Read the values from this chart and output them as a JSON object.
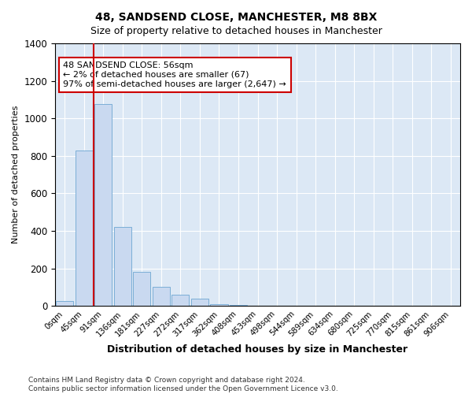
{
  "title1": "48, SANDSEND CLOSE, MANCHESTER, M8 8BX",
  "title2": "Size of property relative to detached houses in Manchester",
  "xlabel": "Distribution of detached houses by size in Manchester",
  "ylabel": "Number of detached properties",
  "bar_labels": [
    "0sqm",
    "45sqm",
    "91sqm",
    "136sqm",
    "181sqm",
    "227sqm",
    "272sqm",
    "317sqm",
    "362sqm",
    "408sqm",
    "453sqm",
    "498sqm",
    "544sqm",
    "589sqm",
    "634sqm",
    "680sqm",
    "725sqm",
    "770sqm",
    "815sqm",
    "861sqm",
    "906sqm"
  ],
  "bar_values": [
    25,
    830,
    1075,
    420,
    180,
    100,
    58,
    38,
    10,
    5,
    2,
    1,
    1,
    0,
    0,
    0,
    0,
    0,
    0,
    0,
    0
  ],
  "bar_color": "#c9d9f0",
  "bar_edge_color": "#7baed6",
  "vline_color": "#cc0000",
  "vline_x": 1.5,
  "ylim": [
    0,
    1400
  ],
  "yticks": [
    0,
    200,
    400,
    600,
    800,
    1000,
    1200,
    1400
  ],
  "annotation_text": "48 SANDSEND CLOSE: 56sqm\n← 2% of detached houses are smaller (67)\n97% of semi-detached houses are larger (2,647) →",
  "annotation_box_facecolor": "#ffffff",
  "annotation_box_edgecolor": "#cc0000",
  "footnote1": "Contains HM Land Registry data © Crown copyright and database right 2024.",
  "footnote2": "Contains public sector information licensed under the Open Government Licence v3.0.",
  "bg_color": "#ffffff",
  "plot_bg_color": "#dce8f5",
  "grid_color": "#ffffff",
  "title1_fontsize": 10,
  "title2_fontsize": 9,
  "ylabel_fontsize": 8,
  "xlabel_fontsize": 9
}
